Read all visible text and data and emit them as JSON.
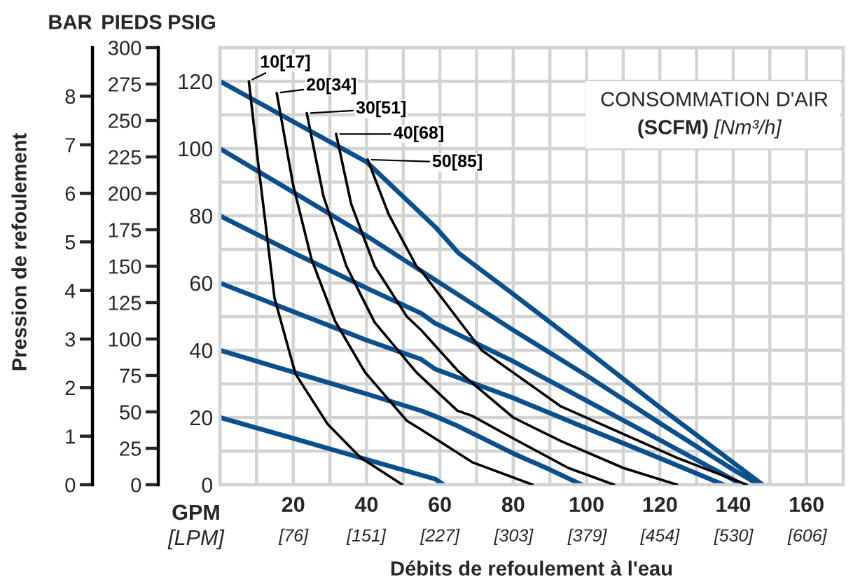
{
  "chart_data": {
    "type": "line",
    "y2label": "PIEDS",
    "y3label": "BAR",
    "xlabel": "Débits de refoulement à l'eau",
    "annotations": [
      "PSIG",
      "GPM",
      "[LPM]",
      "CONSOMMATION D'AIR",
      "(SCFM)",
      "[Nm³/h]",
      "Pression de refoulement"
    ],
    "legend": "top left",
    "xlim": [
      0,
      170
    ],
    "xticks": [
      {
        "value": 0,
        "label": null
      },
      {
        "value": 10,
        "label": null
      },
      20,
      {
        "value": 30,
        "label": null
      },
      40,
      {
        "value": 50,
        "label": null
      },
      60,
      {
        "value": 70,
        "label": null
      },
      80,
      {
        "value": 90,
        "label": null
      },
      100,
      {
        "value": 110,
        "label": null
      },
      120,
      {
        "value": 130,
        "label": null
      },
      140,
      {
        "value": 150,
        "label": null
      },
      160,
      {
        "value": 170,
        "label": null
      }
    ],
    "x2lim": [
      0,
      643
    ],
    "x2ticks": [
      {
        "value": 76,
        "label": "[76]"
      },
      {
        "value": 151,
        "label": "[151]"
      },
      {
        "value": 227,
        "label": "[227]"
      },
      {
        "value": 303,
        "label": "[303]"
      },
      {
        "value": 379,
        "label": "[379]"
      },
      {
        "value": 454,
        "label": "[454]"
      },
      {
        "value": 530,
        "label": "[530]"
      },
      {
        "value": 606,
        "label": "[606]"
      }
    ],
    "ylim": [
      0,
      130
    ],
    "yticks": [
      0,
      {
        "value": 10,
        "label": null
      },
      20,
      {
        "value": 30,
        "label": null
      },
      40,
      {
        "value": 50,
        "label": null
      },
      60,
      {
        "value": 70,
        "label": null
      },
      80,
      {
        "value": 90,
        "label": null
      },
      100,
      {
        "value": 110,
        "label": null
      },
      120,
      {
        "value": 130,
        "label": null
      }
    ],
    "y2lim": [
      0,
      300
    ],
    "y2ticks": [
      0,
      25,
      50,
      75,
      100,
      125,
      150,
      175,
      200,
      225,
      250,
      275,
      300
    ],
    "y3lim": [
      0,
      9
    ],
    "y3ticks": [
      0,
      1,
      2,
      3,
      4,
      5,
      6,
      7,
      8
    ],
    "grid": true,
    "marker": "none",
    "line_style": "solid",
    "series": [
      {
        "color": "#0b4f8c",
        "x": [
          0,
          20,
          40,
          58.7,
          61
        ],
        "values": [
          20,
          13.8,
          7.5,
          1.7,
          0
        ]
      },
      {
        "color": "#0b4f8c",
        "x": [
          0,
          20,
          40,
          54.9,
          58.7,
          64.8,
          80,
          90,
          98.7
        ],
        "values": [
          40,
          33.5,
          27,
          22,
          20.4,
          17.5,
          9.3,
          4.5,
          0
        ]
      },
      {
        "color": "#0b4f8c",
        "x": [
          0,
          20,
          40,
          54.9,
          58.7,
          80,
          100,
          120,
          137.4
        ],
        "values": [
          60,
          51.5,
          43,
          37.3,
          34.4,
          25.8,
          16.8,
          7.9,
          0
        ]
      },
      {
        "color": "#0b4f8c",
        "x": [
          0,
          20,
          40,
          54.9,
          58.7,
          80,
          100,
          120,
          142.5
        ],
        "values": [
          80,
          69,
          58.5,
          51,
          48,
          36.7,
          25,
          13.3,
          0
        ]
      },
      {
        "color": "#0b4f8c",
        "x": [
          0,
          20,
          40,
          54.9,
          80,
          100,
          110,
          120,
          140,
          147
        ],
        "values": [
          100,
          87,
          74,
          63.6,
          46,
          32.5,
          25.4,
          18.3,
          4.5,
          0
        ]
      },
      {
        "color": "#0b4f8c",
        "x": [
          0,
          20,
          40,
          58.7,
          65,
          80,
          100,
          120,
          140,
          148
        ],
        "values": [
          120,
          108,
          96,
          76.7,
          69,
          56.7,
          40,
          23,
          6.6,
          0
        ]
      },
      {
        "name": "10[17]",
        "color": "#000000",
        "x": [
          7.9,
          10.4,
          14.9,
          20.6,
          29.4,
          38.4,
          49.8
        ],
        "values": [
          120,
          96,
          55.5,
          33,
          18,
          8,
          0
        ]
      },
      {
        "name": "20[34]",
        "color": "#000000",
        "x": [
          15.5,
          20,
          25,
          31.4,
          39.6,
          51,
          54.9,
          68.8,
          85.3
        ],
        "values": [
          116.5,
          89,
          67,
          48.7,
          33.4,
          19,
          16.4,
          6.7,
          0
        ]
      },
      {
        "name": "30[51]",
        "color": "#000000",
        "x": [
          23.7,
          28.2,
          34.5,
          42.2,
          53.6,
          64.8,
          68.8,
          80.3,
          95,
          107.5
        ],
        "values": [
          110.5,
          86,
          65,
          48.3,
          33.4,
          22,
          20.5,
          13.6,
          5,
          0
        ]
      },
      {
        "name": "40[68]",
        "color": "#000000",
        "x": [
          31.7,
          35.8,
          42.2,
          51,
          54.9,
          64.8,
          80,
          93,
          110,
          124.7
        ],
        "values": [
          104.3,
          83.5,
          65,
          50,
          46,
          34,
          20,
          13,
          5,
          0
        ]
      },
      {
        "name": "50[85]",
        "color": "#000000",
        "x": [
          40.3,
          46,
          53.6,
          54.9,
          71.4,
          93,
          124.7,
          143.7
        ],
        "values": [
          96.7,
          80.5,
          65,
          63.6,
          40,
          23.3,
          8,
          0
        ]
      }
    ]
  }
}
